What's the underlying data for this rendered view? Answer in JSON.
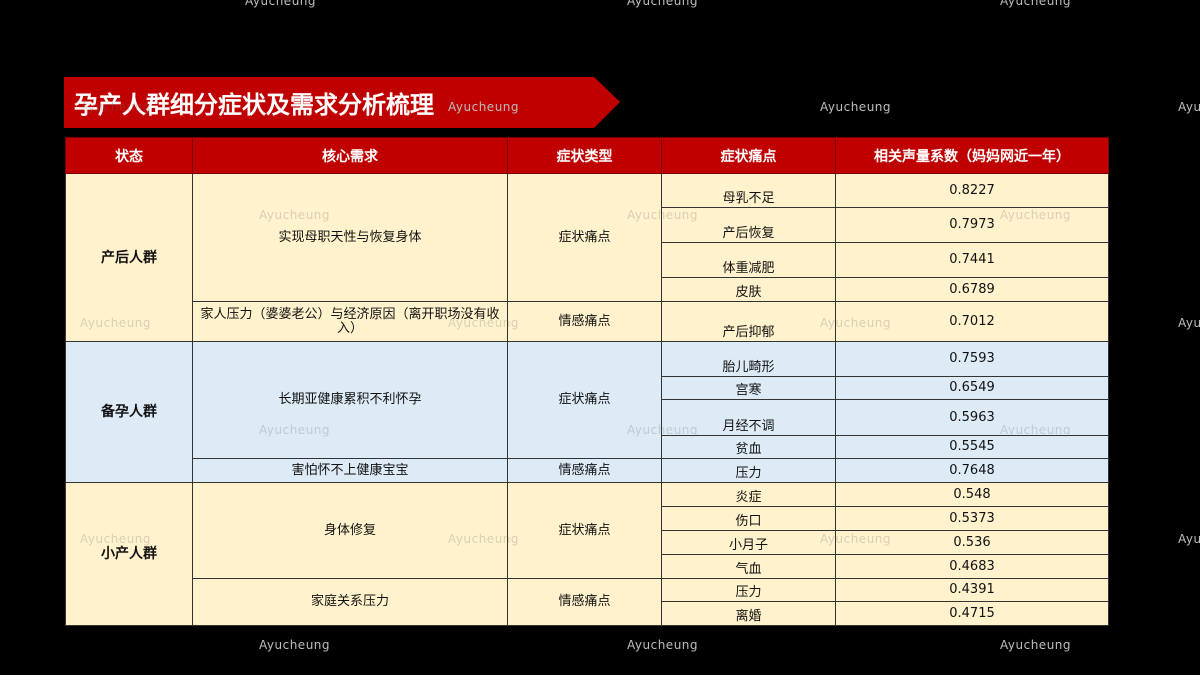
{
  "title": "孕产人群细分症状及需求分析梳理",
  "watermark": "Ayucheung",
  "colors": {
    "header_red": "#c00000",
    "postpartum_bg": "#fff2cc",
    "preconception_bg": "#ddebf7",
    "miscarriage_bg": "#fff2cc"
  },
  "table": {
    "headers": [
      "状态",
      "核心需求",
      "症状类型",
      "症状痛点",
      "相关声量系数（妈妈网近一年）"
    ],
    "groups": [
      {
        "state": "产后人群",
        "needs": [
          {
            "need": "实现母职天性与恢复身体",
            "type": "症状痛点",
            "items": [
              {
                "pain": "母乳不足",
                "value": "0.8227"
              },
              {
                "pain": "产后恢复",
                "value": "0.7973"
              },
              {
                "pain": "体重减肥",
                "value": "0.7441"
              },
              {
                "pain": "皮肤",
                "value": "0.6789"
              }
            ]
          },
          {
            "need": "家人压力（婆婆老公）与经济原因（离开职场没有收入）",
            "type": "情感痛点",
            "items": [
              {
                "pain": "产后抑郁",
                "value": "0.7012"
              }
            ]
          }
        ]
      },
      {
        "state": "备孕人群",
        "needs": [
          {
            "need": "长期亚健康累积不利怀孕",
            "type": "症状痛点",
            "items": [
              {
                "pain": "胎儿畸形",
                "value": "0.7593"
              },
              {
                "pain": "宫寒",
                "value": "0.6549"
              },
              {
                "pain": "月经不调",
                "value": "0.5963"
              },
              {
                "pain": "贫血",
                "value": "0.5545"
              }
            ]
          },
          {
            "need": "害怕怀不上健康宝宝",
            "type": "情感痛点",
            "items": [
              {
                "pain": "压力",
                "value": "0.7648"
              }
            ]
          }
        ]
      },
      {
        "state": "小产人群",
        "needs": [
          {
            "need": "身体修复",
            "type": "症状痛点",
            "items": [
              {
                "pain": "炎症",
                "value": "0.548"
              },
              {
                "pain": "伤口",
                "value": "0.5373"
              },
              {
                "pain": "小月子",
                "value": "0.536"
              },
              {
                "pain": "气血",
                "value": "0.4683"
              }
            ]
          },
          {
            "need": "家庭关系压力",
            "type": "情感痛点",
            "items": [
              {
                "pain": "压力",
                "value": "0.4391"
              },
              {
                "pain": "离婚",
                "value": "0.4715"
              }
            ]
          }
        ]
      }
    ]
  }
}
